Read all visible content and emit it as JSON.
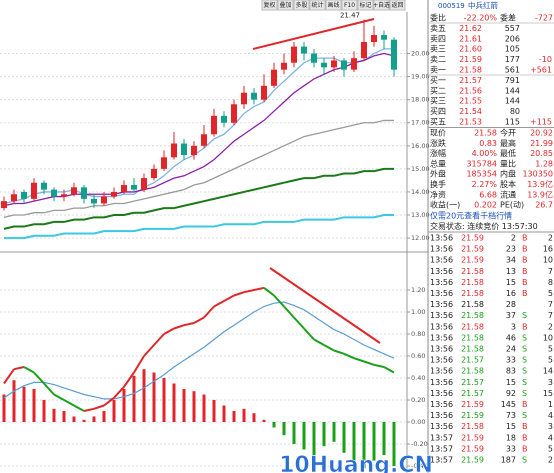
{
  "toolbar": [
    "复权",
    "叠加",
    "多股",
    "统计",
    "画线",
    "F10",
    "标记",
    "+自选",
    "返回"
  ],
  "chart_data": [
    {
      "type": "candlestick",
      "annotation": "21.47",
      "annotation_index": 36,
      "open": [
        13.3,
        13.6,
        14.0,
        13.7,
        14.4,
        14.1,
        13.8,
        13.9,
        14.2,
        13.7,
        13.5,
        13.8,
        14.0,
        14.3,
        14.1,
        14.6,
        15.0,
        15.5,
        16.1,
        15.6,
        16.0,
        16.5,
        17.3,
        17.0,
        17.8,
        18.3,
        18.0,
        18.6,
        19.3,
        19.6,
        20.3,
        20.0,
        19.6,
        19.4,
        19.7,
        19.3,
        19.8,
        20.5,
        20.8,
        20.6
      ],
      "high": [
        13.8,
        14.1,
        14.1,
        14.6,
        14.5,
        14.2,
        14.1,
        14.4,
        14.3,
        13.9,
        14.0,
        14.2,
        14.5,
        14.6,
        14.8,
        15.2,
        15.8,
        16.6,
        16.3,
        16.2,
        16.9,
        17.6,
        17.5,
        18.0,
        18.6,
        18.5,
        19.1,
        19.6,
        20.0,
        20.5,
        20.5,
        20.2,
        19.8,
        19.9,
        19.8,
        20.1,
        21.47,
        21.2,
        21.0,
        20.7
      ],
      "low": [
        13.2,
        13.5,
        13.5,
        13.6,
        13.9,
        13.6,
        13.6,
        13.8,
        13.5,
        13.3,
        13.4,
        13.7,
        13.9,
        14.0,
        14.0,
        14.5,
        14.9,
        15.4,
        15.4,
        15.4,
        15.9,
        16.4,
        16.8,
        16.9,
        17.6,
        17.8,
        17.9,
        18.5,
        19.1,
        19.4,
        19.7,
        19.4,
        19.1,
        19.2,
        19.0,
        19.2,
        19.7,
        20.3,
        20.2,
        19.0
      ],
      "close": [
        13.6,
        13.9,
        13.7,
        14.4,
        14.1,
        13.8,
        13.9,
        14.2,
        13.7,
        13.5,
        13.8,
        14.0,
        14.3,
        14.1,
        14.6,
        15.0,
        15.5,
        16.1,
        15.6,
        16.0,
        16.5,
        17.3,
        17.0,
        17.8,
        18.3,
        18.0,
        18.6,
        19.3,
        19.6,
        20.3,
        20.0,
        19.6,
        19.4,
        19.7,
        19.3,
        19.8,
        20.5,
        20.8,
        20.6,
        19.3
      ],
      "up_color": "#e0262a",
      "down_color": "#12a08c",
      "series": [
        {
          "color": "#7fb3e6",
          "values": [
            13.5,
            13.6,
            13.7,
            13.9,
            14.0,
            14.0,
            14.0,
            14.1,
            13.9,
            13.8,
            13.8,
            13.8,
            13.9,
            13.9,
            14.2,
            14.4,
            14.7,
            15.1,
            15.4,
            15.6,
            15.9,
            16.3,
            16.5,
            16.9,
            17.4,
            17.7,
            17.9,
            18.4,
            18.8,
            19.2,
            19.6,
            19.8,
            19.8,
            19.8,
            19.6,
            19.6,
            19.7,
            20.0,
            20.2,
            20.2
          ]
        },
        {
          "color": "#8a1fa8",
          "values": [
            13.4,
            13.5,
            13.5,
            13.6,
            13.7,
            13.8,
            13.8,
            13.9,
            13.9,
            13.9,
            13.9,
            13.9,
            14.0,
            14.0,
            14.1,
            14.2,
            14.4,
            14.6,
            14.7,
            14.9,
            15.1,
            15.4,
            15.8,
            16.2,
            16.5,
            16.8,
            17.1,
            17.5,
            17.9,
            18.3,
            18.6,
            18.9,
            19.1,
            19.3,
            19.4,
            19.6,
            19.7,
            19.9,
            20.0,
            19.9
          ]
        },
        {
          "color": "#9a9a9a",
          "values": [
            12.9,
            13.0,
            13.0,
            13.1,
            13.1,
            13.2,
            13.2,
            13.3,
            13.3,
            13.4,
            13.4,
            13.5,
            13.5,
            13.6,
            13.7,
            13.8,
            13.9,
            14.0,
            14.1,
            14.3,
            14.4,
            14.6,
            14.8,
            15.0,
            15.2,
            15.4,
            15.6,
            15.8,
            16.0,
            16.2,
            16.4,
            16.5,
            16.6,
            16.7,
            16.8,
            16.9,
            17.0,
            17.0,
            17.1,
            17.1
          ]
        },
        {
          "color": "#1a7a1a",
          "values": [
            12.4,
            12.5,
            12.5,
            12.6,
            12.6,
            12.7,
            12.7,
            12.8,
            12.8,
            12.9,
            12.9,
            13.0,
            13.0,
            13.1,
            13.1,
            13.2,
            13.3,
            13.3,
            13.4,
            13.5,
            13.6,
            13.7,
            13.8,
            13.9,
            14.0,
            14.1,
            14.2,
            14.3,
            14.4,
            14.5,
            14.6,
            14.6,
            14.7,
            14.7,
            14.8,
            14.8,
            14.9,
            14.9,
            15.0,
            15.0
          ]
        },
        {
          "color": "#3cc8e0",
          "values": [
            12.0,
            12.0,
            12.0,
            12.1,
            12.1,
            12.1,
            12.2,
            12.2,
            12.2,
            12.2,
            12.3,
            12.3,
            12.3,
            12.3,
            12.4,
            12.4,
            12.4,
            12.4,
            12.5,
            12.5,
            12.5,
            12.5,
            12.6,
            12.6,
            12.6,
            12.6,
            12.7,
            12.7,
            12.7,
            12.7,
            12.8,
            12.8,
            12.8,
            12.8,
            12.9,
            12.9,
            12.9,
            12.9,
            13.0,
            13.0
          ]
        }
      ],
      "ylim": [
        11.7,
        21.8
      ],
      "yticks": [
        {
          "value": 20,
          "label": "20.00"
        },
        {
          "value": 19,
          "label": "19.00"
        },
        {
          "value": 18,
          "label": "18.00"
        },
        {
          "value": 17,
          "label": "17.00"
        },
        {
          "value": 16,
          "label": "16.00"
        },
        {
          "value": 15,
          "label": "15.00"
        },
        {
          "value": 14,
          "label": "14.00"
        },
        {
          "value": 13,
          "label": "13.00"
        },
        {
          "value": 12,
          "label": "12.00"
        }
      ],
      "grid": true
    },
    {
      "type": "macd",
      "hist": [
        0.25,
        0.38,
        0.32,
        0.3,
        0.2,
        0.12,
        0.1,
        0.05,
        0.02,
        0.05,
        0.1,
        0.2,
        0.3,
        0.42,
        0.48,
        0.45,
        0.4,
        0.35,
        0.3,
        0.28,
        0.25,
        0.2,
        0.15,
        0.1,
        0.12,
        0.08,
        0.02,
        -0.05,
        -0.12,
        -0.2,
        -0.25,
        -0.3,
        -0.22,
        -0.18,
        -0.28,
        -0.38,
        -0.42,
        -0.35,
        -0.3,
        -0.4
      ],
      "dif": [
        0.35,
        0.48,
        0.5,
        0.45,
        0.35,
        0.25,
        0.2,
        0.15,
        0.1,
        0.12,
        0.15,
        0.22,
        0.32,
        0.45,
        0.6,
        0.7,
        0.8,
        0.85,
        0.88,
        0.9,
        0.95,
        1.05,
        1.1,
        1.15,
        1.18,
        1.2,
        1.22,
        1.15,
        1.05,
        0.95,
        0.85,
        0.75,
        0.7,
        0.65,
        0.62,
        0.58,
        0.55,
        0.52,
        0.5,
        0.45
      ],
      "dea": [
        0.22,
        0.28,
        0.33,
        0.36,
        0.36,
        0.34,
        0.31,
        0.28,
        0.25,
        0.23,
        0.21,
        0.21,
        0.23,
        0.26,
        0.31,
        0.37,
        0.43,
        0.5,
        0.56,
        0.62,
        0.68,
        0.75,
        0.82,
        0.88,
        0.94,
        1.0,
        1.05,
        1.08,
        1.09,
        1.06,
        1.02,
        0.96,
        0.9,
        0.84,
        0.8,
        0.75,
        0.7,
        0.66,
        0.62,
        0.58
      ],
      "pos_color": "#e0262a",
      "neg_color": "#19a019",
      "dea_color": "#5b9bd5",
      "ylim": [
        -0.46,
        1.45
      ],
      "yticks": [
        {
          "value": 1.2,
          "label": "1.20"
        },
        {
          "value": 1,
          "label": "1.00"
        },
        {
          "value": 0.8,
          "label": "0.80"
        },
        {
          "value": 0.6,
          "label": "0.60"
        },
        {
          "value": 0.4,
          "label": "0.40"
        },
        {
          "value": 0.2,
          "label": "0.20"
        },
        {
          "value": 0,
          "label": "0.00"
        },
        {
          "value": -0.2,
          "label": "-0.20"
        },
        {
          "value": -0.4,
          "label": "-0.40"
        }
      ],
      "grid": true
    }
  ],
  "quote": {
    "code": "000519",
    "name": "中兵红箭",
    "book": [
      [
        "委比",
        "-22.20%",
        "委差",
        "-727"
      ],
      [
        "卖五",
        "21.62",
        "557"
      ],
      [
        "卖四",
        "21.61",
        "206"
      ],
      [
        "卖三",
        "21.60",
        "105"
      ],
      [
        "卖二",
        "21.59",
        "177",
        "-10"
      ],
      [
        "卖一",
        "21.58",
        "561",
        "+561"
      ],
      [
        "买一",
        "21.57",
        "791"
      ],
      [
        "买二",
        "21.56",
        "144"
      ],
      [
        "买三",
        "21.55",
        "144"
      ],
      [
        "买四",
        "21.54",
        "80"
      ],
      [
        "买五",
        "21.53",
        "115",
        "+115"
      ]
    ],
    "stats": [
      [
        "现价",
        "21.58",
        "今开",
        "20.92"
      ],
      [
        "涨跌",
        "0.83",
        "最高",
        "21.99"
      ],
      [
        "涨幅",
        "4.00%",
        "最低",
        "20.85"
      ],
      [
        "总量",
        "315784",
        "量比",
        "1.28"
      ],
      [
        "外盘",
        "185354",
        "内盘",
        "130350"
      ],
      [
        "换手",
        "2.27%",
        "股本",
        "13.9亿"
      ],
      [
        "净资",
        "6.68",
        "流通",
        "13.9亿"
      ],
      [
        "收益(一)",
        "0.202",
        "PE(动)",
        "26.7"
      ]
    ],
    "promo": "仅需20元查看千档行情",
    "status": "交易状态: 连续竞价 13:57:30"
  },
  "trades": {
    "side_colors": {
      "B": "#e0262a",
      "S": "#19a019"
    },
    "rows": [
      [
        "13:56",
        "21.59",
        "2",
        "B",
        "2"
      ],
      [
        "13:56",
        "21.59",
        "23",
        "B",
        "16"
      ],
      [
        "13:56",
        "21.59",
        "34",
        "B",
        "10"
      ],
      [
        "13:56",
        "21.58",
        "13",
        "B",
        "7"
      ],
      [
        "13:56",
        "21.58",
        "15",
        "B",
        "8"
      ],
      [
        "13:56",
        "21.58",
        "16",
        "B",
        "5"
      ],
      [
        "13:56",
        "21.58",
        "28",
        "",
        "7"
      ],
      [
        "13:56",
        "21.58",
        "37",
        "S",
        "7"
      ],
      [
        "13:56",
        "21.58",
        "3",
        "B",
        "2"
      ],
      [
        "13:56",
        "21.58",
        "46",
        "S",
        "10"
      ],
      [
        "13:56",
        "21.58",
        "24",
        "S",
        "5"
      ],
      [
        "13:56",
        "21.57",
        "33",
        "S",
        "5"
      ],
      [
        "13:56",
        "21.58",
        "83",
        "S",
        "14"
      ],
      [
        "13:56",
        "21.57",
        "15",
        "S",
        "3"
      ],
      [
        "13:56",
        "21.57",
        "92",
        "S",
        "15"
      ],
      [
        "13:56",
        "21.59",
        "145",
        "B",
        "1"
      ],
      [
        "13:56",
        "21.59",
        "73",
        "S",
        "4"
      ],
      [
        "13:56",
        "21.58",
        "15",
        "B",
        "3"
      ],
      [
        "13:57",
        "21.59",
        "18",
        "B",
        "4"
      ],
      [
        "13:57",
        "21.59",
        "33",
        "B",
        "5"
      ],
      [
        "13:57",
        "21.59",
        "187",
        "S",
        "2"
      ]
    ]
  },
  "watermark": "10Huang.CN"
}
